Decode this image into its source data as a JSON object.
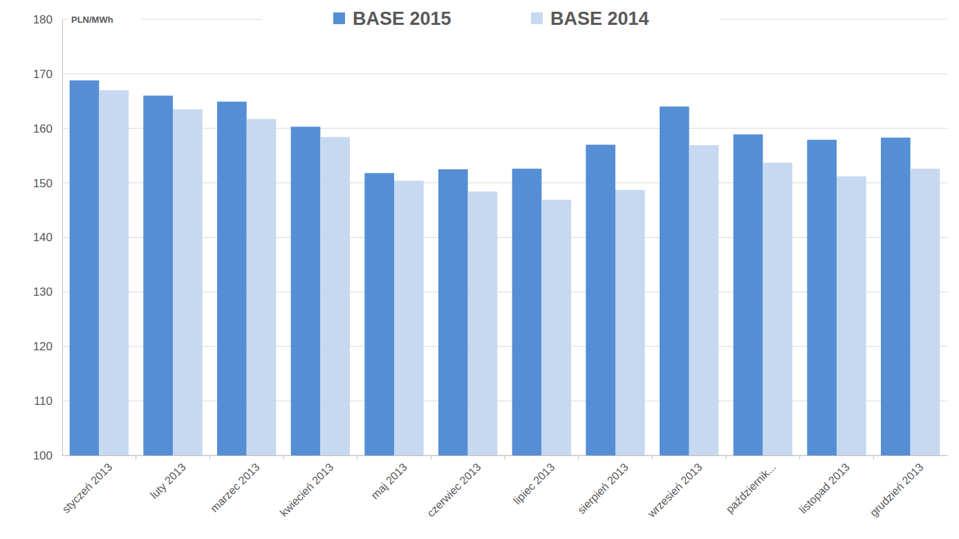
{
  "chart_data": {
    "type": "bar",
    "y_axis_label": "PLN/MWh",
    "categories": [
      "styczeń 2013",
      "luty 2013",
      "marzec 2013",
      "kwiecień 2013",
      "maj 2013",
      "czerwiec 2013",
      "lipiec 2013",
      "sierpień 2013",
      "wrzesień 2013",
      "październik...",
      "listopad 2013",
      "grudzień 2013"
    ],
    "series": [
      {
        "name": "BASE 2015",
        "color": "#558ed5",
        "values": [
          168.8,
          166.0,
          164.9,
          160.3,
          151.8,
          152.5,
          152.6,
          157.0,
          164.0,
          158.9,
          157.9,
          158.3
        ]
      },
      {
        "name": "BASE 2014",
        "color": "#c6d9f1",
        "values": [
          167.0,
          163.5,
          161.7,
          158.4,
          150.4,
          148.4,
          146.9,
          148.7,
          156.9,
          153.7,
          151.2,
          152.6
        ]
      }
    ],
    "ylim": [
      100,
      180
    ],
    "yticks": [
      100,
      110,
      120,
      130,
      140,
      150,
      160,
      170,
      180
    ],
    "grid": true,
    "legend": "top"
  }
}
